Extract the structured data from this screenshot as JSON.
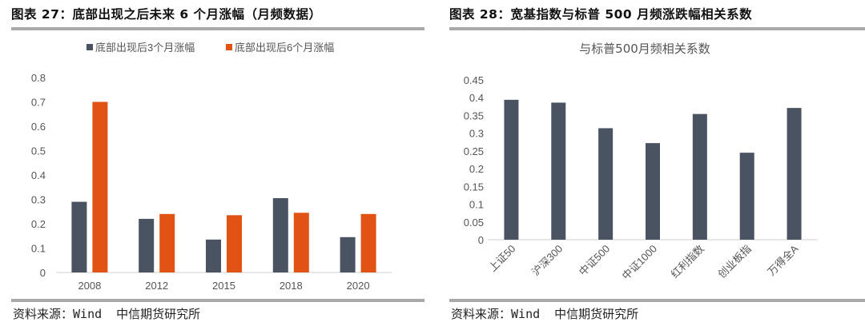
{
  "left": {
    "figure_title": "图表 27：底部出现之后未来 6 个月涨幅（月频数据）",
    "source_label": "资料来源：",
    "source_name": "Wind",
    "source_org": "中信期货研究所",
    "colors": {
      "series_a": "#4a5361",
      "series_b": "#e05314"
    }
  },
  "right": {
    "figure_title": "图表 28：宽基指数与标普 500 月频涨跌幅相关系数",
    "source_label": "资料来源：",
    "source_name": "Wind",
    "source_org": "中信期货研究所",
    "colors": {
      "bar": "#4a5361"
    }
  },
  "chart_data": [
    {
      "type": "bar",
      "title": "",
      "categories": [
        "2008",
        "2012",
        "2015",
        "2018",
        "2020"
      ],
      "series": [
        {
          "name": "底部出现后3个月涨幅",
          "values": [
            0.29,
            0.22,
            0.135,
            0.305,
            0.145
          ]
        },
        {
          "name": "底部出现后6个月涨幅",
          "values": [
            0.7,
            0.24,
            0.235,
            0.245,
            0.24
          ]
        }
      ],
      "ylim": [
        0,
        0.8
      ],
      "yticks": [
        "0",
        "0.1",
        "0.2",
        "0.3",
        "0.4",
        "0.5",
        "0.6",
        "0.7",
        "0.8"
      ],
      "legend_position": "top",
      "grid": false
    },
    {
      "type": "bar",
      "title": "与标普500月频相关系数",
      "categories": [
        "上证50",
        "沪深300",
        "中证500",
        "中证1000",
        "红利指数",
        "创业板指",
        "万得全A"
      ],
      "values": [
        0.394,
        0.386,
        0.314,
        0.272,
        0.354,
        0.245,
        0.371
      ],
      "ylim": [
        0,
        0.45
      ],
      "yticks": [
        "0",
        "0.05",
        "0.1",
        "0.15",
        "0.2",
        "0.25",
        "0.3",
        "0.35",
        "0.4",
        "0.45"
      ],
      "grid": false
    }
  ]
}
